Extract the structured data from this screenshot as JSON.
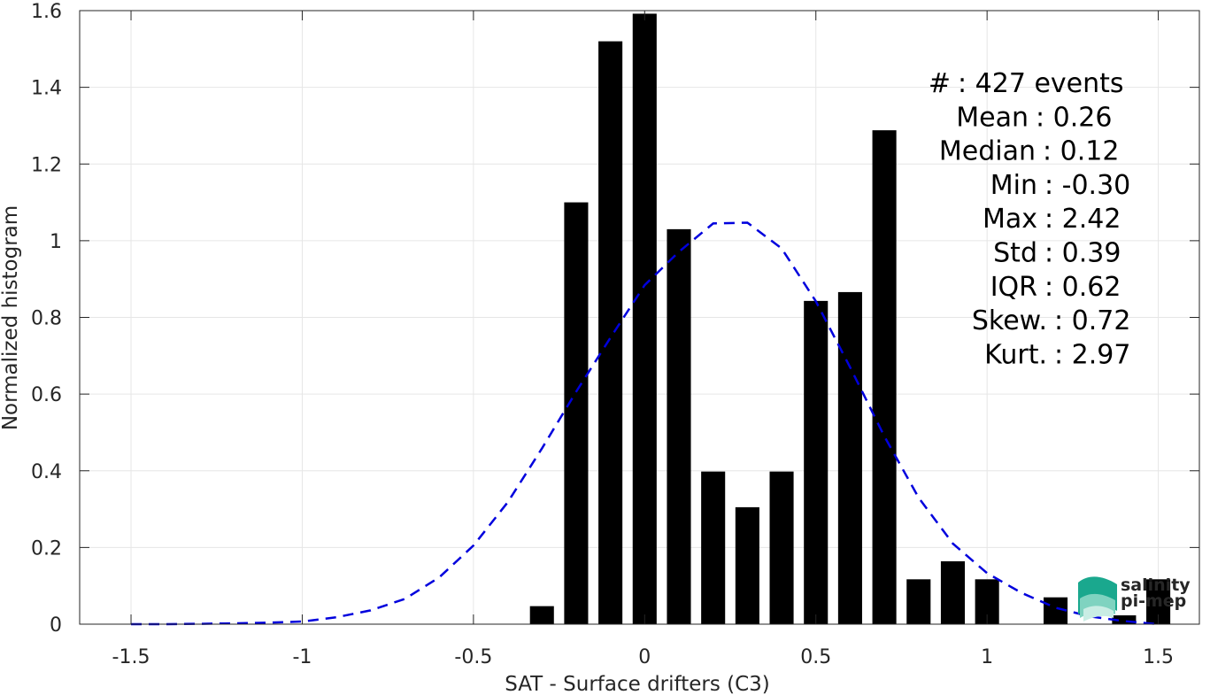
{
  "chart_data": {
    "type": "bar",
    "xlabel": "SAT - Surface drifters (C3)",
    "ylabel": "Normalized histogram",
    "xlim": [
      -1.65,
      1.62
    ],
    "ylim": [
      0,
      1.6
    ],
    "grid": true,
    "xticks": [
      -1.5,
      -1,
      -0.5,
      0,
      0.5,
      1,
      1.5
    ],
    "xtick_labels": [
      "-1.5",
      "-1",
      "-0.5",
      "0",
      "0.5",
      "1",
      "1.5"
    ],
    "yticks": [
      0,
      0.2,
      0.4,
      0.6,
      0.8,
      1,
      1.2,
      1.4,
      1.6
    ],
    "ytick_labels": [
      "0",
      "0.2",
      "0.4",
      "0.6",
      "0.8",
      "1",
      "1.2",
      "1.4",
      "1.6"
    ],
    "bar_width": 0.07,
    "bars": {
      "x": [
        -0.3,
        -0.2,
        -0.1,
        0,
        0.1,
        0.2,
        0.3,
        0.4,
        0.5,
        0.6,
        0.7,
        0.8,
        0.9,
        1.0,
        1.2,
        1.4,
        1.5
      ],
      "values": [
        0.047,
        1.1,
        1.52,
        1.592,
        1.03,
        0.398,
        0.305,
        0.398,
        0.843,
        0.866,
        1.288,
        0.117,
        0.164,
        0.117,
        0.07,
        0.023,
        0.117
      ],
      "color": "#000000"
    },
    "fit_curve": {
      "style": "dashed",
      "color": "#0000dd",
      "x": [
        -1.5,
        -1.4,
        -1.3,
        -1.2,
        -1.1,
        -1.0,
        -0.9,
        -0.8,
        -0.7,
        -0.6,
        -0.5,
        -0.4,
        -0.3,
        -0.2,
        -0.1,
        0.0,
        0.1,
        0.2,
        0.3,
        0.4,
        0.5,
        0.6,
        0.7,
        0.8,
        0.9,
        1.0,
        1.1,
        1.2,
        1.3,
        1.4,
        1.5
      ],
      "y": [
        0.0,
        0.0,
        0.001,
        0.002,
        0.004,
        0.007,
        0.018,
        0.036,
        0.066,
        0.122,
        0.205,
        0.318,
        0.458,
        0.606,
        0.747,
        0.884,
        0.971,
        1.045,
        1.047,
        0.98,
        0.842,
        0.67,
        0.49,
        0.33,
        0.21,
        0.133,
        0.082,
        0.043,
        0.02,
        0.008,
        0.0
      ]
    },
    "annotation": {
      "lines": [
        {
          "label": "#  ",
          "value": "427 events"
        },
        {
          "label": "Mean",
          "value": "0.26"
        },
        {
          "label": "Median",
          "value": "0.12"
        },
        {
          "label": "Min",
          "value": "-0.30"
        },
        {
          "label": "Max",
          "value": "2.42"
        },
        {
          "label": "Std",
          "value": "0.39"
        },
        {
          "label": "IQR",
          "value": "0.62"
        },
        {
          "label": "Skew.",
          "value": "0.72"
        },
        {
          "label": "Kurt.",
          "value": "2.97"
        }
      ]
    }
  },
  "logo": {
    "line1": "salinity",
    "line2": "pi-mep",
    "color": "#1aa88e"
  }
}
